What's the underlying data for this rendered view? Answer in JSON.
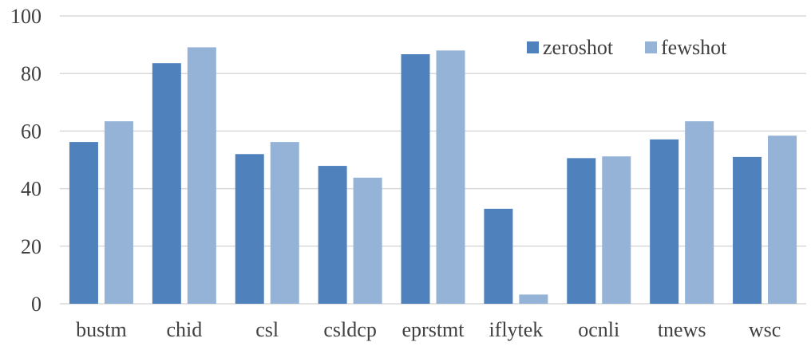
{
  "chart_data": {
    "type": "bar",
    "categories": [
      "bustm",
      "chid",
      "csl",
      "csldcp",
      "eprstmt",
      "iflytek",
      "ocnli",
      "tnews",
      "wsc"
    ],
    "series": [
      {
        "name": "zeroshot",
        "color": "#4f81bd",
        "values": [
          56.2,
          83.6,
          52.0,
          47.9,
          86.7,
          33.0,
          50.6,
          57.1,
          51.0
        ]
      },
      {
        "name": "fewshot",
        "color": "#95b3d7",
        "values": [
          63.4,
          89.1,
          56.2,
          43.8,
          88.0,
          3.2,
          51.2,
          63.4,
          58.4
        ]
      }
    ],
    "yticks": [
      0,
      20,
      40,
      60,
      80,
      100
    ],
    "ylim": [
      0,
      100
    ],
    "grid": true,
    "legend_position": "top-right"
  }
}
